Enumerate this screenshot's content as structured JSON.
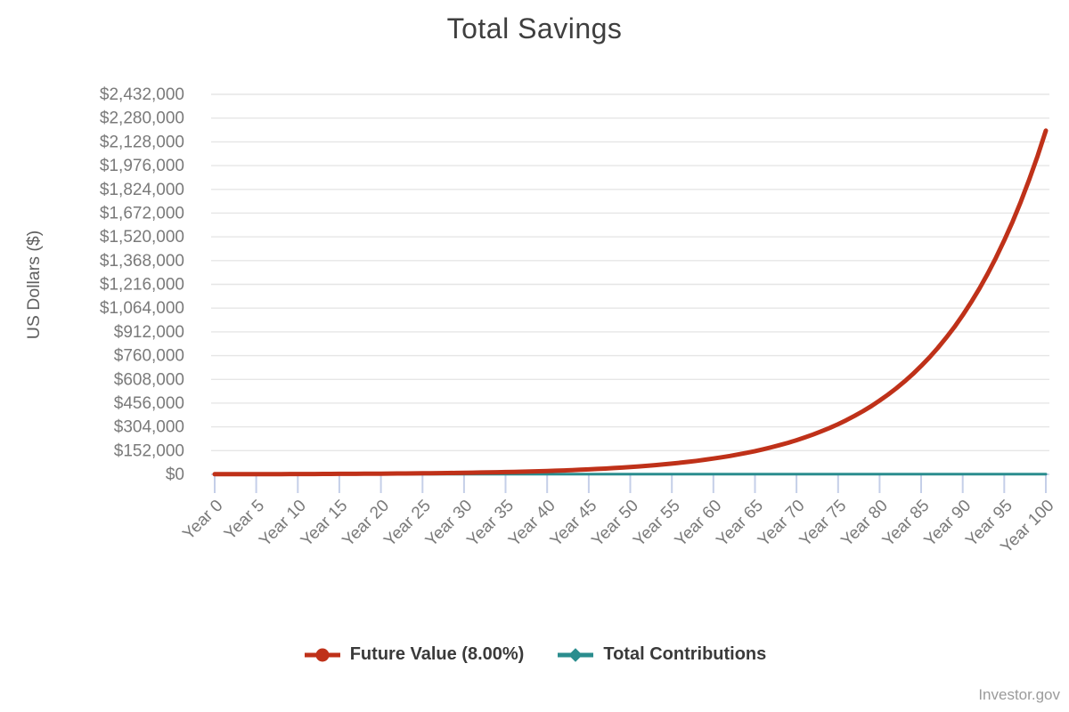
{
  "title": "Total Savings",
  "footer": {
    "brand": "Investor.gov"
  },
  "legend": {
    "items": [
      {
        "label": "Future Value (8.00%)",
        "color": "#bf3119",
        "marker": "circle"
      },
      {
        "label": "Total Contributions",
        "color": "#2a8d8e",
        "marker": "diamond"
      }
    ]
  },
  "chart_data": {
    "type": "line",
    "title": "Total Savings",
    "xlabel": "",
    "ylabel": "US Dollars ($)",
    "x": [
      0,
      5,
      10,
      15,
      20,
      25,
      30,
      35,
      40,
      45,
      50,
      55,
      60,
      65,
      70,
      75,
      80,
      85,
      90,
      95,
      100
    ],
    "x_tick_labels": [
      "Year 0",
      "Year 5",
      "Year 10",
      "Year 15",
      "Year 20",
      "Year 25",
      "Year 30",
      "Year 35",
      "Year 40",
      "Year 45",
      "Year 50",
      "Year 55",
      "Year 60",
      "Year 65",
      "Year 70",
      "Year 75",
      "Year 80",
      "Year 85",
      "Year 90",
      "Year 95",
      "Year 100"
    ],
    "series": [
      {
        "name": "Future Value (8.00%)",
        "color": "#bf3119",
        "line_width": 5,
        "values": [
          1000,
          1469,
          2159,
          3172,
          4661,
          6848,
          10063,
          14785,
          21725,
          31920,
          46902,
          68914,
          101257,
          148780,
          218606,
          321205,
          471955,
          693456,
          1018915,
          1497121,
          2199761
        ]
      },
      {
        "name": "Total Contributions",
        "color": "#2a8d8e",
        "line_width": 3,
        "values": [
          1000,
          1000,
          1000,
          1000,
          1000,
          1000,
          1000,
          1000,
          1000,
          1000,
          1000,
          1000,
          1000,
          1000,
          1000,
          1000,
          1000,
          1000,
          1000,
          1000,
          1000
        ]
      }
    ],
    "ylim": [
      0,
      2432000
    ],
    "ytick_step": 152000,
    "y_tick_labels": [
      "$0",
      "$152,000",
      "$304,000",
      "$456,000",
      "$608,000",
      "$760,000",
      "$912,000",
      "$1,064,000",
      "$1,216,000",
      "$1,368,000",
      "$1,520,000",
      "$1,672,000",
      "$1,824,000",
      "$1,976,000",
      "$2,128,000",
      "$2,280,000",
      "$2,432,000"
    ],
    "grid": "horizontal",
    "legend_position": "bottom",
    "grid_color": "#e6e6e6",
    "axis_color": "#c5cfe8",
    "tick_label_color": "#7a7a7a",
    "ylabel_color": "#5f5f5f"
  }
}
